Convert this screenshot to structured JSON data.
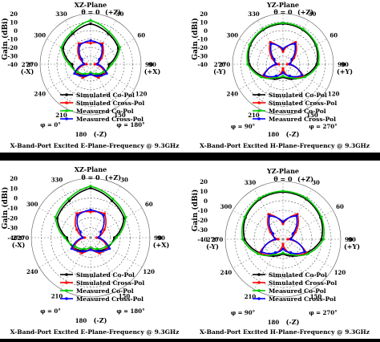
{
  "charts": [
    {
      "plane_title": "XZ-Plane",
      "theta_label": "θ = 0",
      "plus_axis_label": "(+Z)",
      "minus_axis_label": "(-Z)",
      "left_dir_label": "(-X)",
      "right_dir_label": "(+X)",
      "phi_left": "φ = 0°",
      "phi_right": "φ = 180°",
      "caption": "X-Band-Port Excited E-Plane-Frequency @ 9.3GHz",
      "ylabel": "Gain (dBi)"
    },
    {
      "plane_title": "YZ-Plane",
      "theta_label": "θ = 0",
      "plus_axis_label": "(+Z)",
      "minus_axis_label": "(-Z)",
      "left_dir_label": "(-Y)",
      "right_dir_label": "(+Y)",
      "phi_left": "φ = 90°",
      "phi_right": "φ = 270°",
      "caption": "X-Band-Port Excited H-Plane-Frequency @ 9.3GHz",
      "ylabel": "Gain (dBi)"
    },
    {
      "plane_title": "XZ-Plane",
      "theta_label": "θ = 0",
      "plus_axis_label": "(+Z)",
      "minus_axis_label": "(-Z)",
      "left_dir_label": "(-X)",
      "right_dir_label": "(+X)",
      "phi_left": "φ = 0°",
      "phi_right": "φ = 180°",
      "caption": "X-Band-Port Excited E-Plane-Frequency @ 9.3GHz",
      "ylabel": "Gain (dBi)"
    },
    {
      "plane_title": "YZ-Plane",
      "theta_label": "θ = 0",
      "plus_axis_label": "(+Z)",
      "minus_axis_label": "(-Z)",
      "left_dir_label": "(-Y)",
      "right_dir_label": "(+Y)",
      "phi_left": "φ = 90°",
      "phi_right": "φ = 270°",
      "caption": "X-Band-Port Excited H-Plane-Frequency @ 9.3GHz",
      "ylabel": "Gain (dBi)"
    }
  ],
  "chart_data": [
    {
      "type": "polar",
      "r_ticks": [
        20,
        10,
        0,
        -10,
        -20,
        -30,
        -40
      ],
      "rlim": [
        -40,
        20
      ],
      "angle_ticks": [
        0,
        30,
        60,
        90,
        120,
        150,
        180,
        210,
        240,
        270,
        300,
        330
      ],
      "series": [
        {
          "name": "Simulated Co-Pol",
          "color": "#000000",
          "angles": [
            0,
            30,
            60,
            90,
            120,
            150,
            180,
            210,
            240,
            270,
            300,
            330
          ],
          "values": [
            8,
            2,
            -2,
            -18,
            -20,
            -25,
            -28,
            -25,
            -20,
            -18,
            -2,
            2
          ]
        },
        {
          "name": "Simulated Cross-Pol",
          "color": "#ff0000",
          "angles": [
            0,
            30,
            60,
            90,
            120,
            150,
            180,
            210,
            240,
            270,
            300,
            330
          ],
          "values": [
            -15,
            -12,
            -25,
            -35,
            -20,
            -22,
            -30,
            -22,
            -20,
            -35,
            -25,
            -12
          ]
        },
        {
          "name": "Measured Co-Pol",
          "color": "#00cc00",
          "angles": [
            0,
            30,
            60,
            90,
            120,
            150,
            180,
            210,
            240,
            270,
            300,
            330
          ],
          "values": [
            12,
            4,
            0,
            -15,
            -22,
            -27,
            -30,
            -27,
            -22,
            -15,
            0,
            4
          ]
        },
        {
          "name": "Measured Cross-Pol",
          "color": "#0000ff",
          "angles": [
            0,
            30,
            60,
            90,
            120,
            150,
            180,
            210,
            240,
            270,
            300,
            330
          ],
          "values": [
            -12,
            -14,
            -28,
            -32,
            -18,
            -24,
            -28,
            -24,
            -18,
            -32,
            -28,
            -14
          ]
        }
      ]
    },
    {
      "type": "polar",
      "r_ticks": [
        20,
        10,
        0,
        -10,
        -20,
        -30,
        -40
      ],
      "rlim": [
        -40,
        20
      ],
      "angle_ticks": [
        0,
        30,
        60,
        90,
        120,
        150,
        180,
        210,
        240,
        270,
        300,
        330
      ],
      "series": [
        {
          "name": "Simulated Co-Pol",
          "color": "#000000",
          "angles": [
            0,
            30,
            60,
            90,
            120,
            150,
            180,
            210,
            240,
            270,
            300,
            330
          ],
          "values": [
            8,
            7,
            5,
            0,
            -12,
            -20,
            -25,
            -20,
            -12,
            0,
            5,
            7
          ]
        },
        {
          "name": "Simulated Cross-Pol",
          "color": "#ff0000",
          "angles": [
            0,
            30,
            60,
            90,
            120,
            150,
            180,
            210,
            240,
            270,
            300,
            330
          ],
          "values": [
            -25,
            -10,
            -25,
            -35,
            -12,
            -22,
            -35,
            -22,
            -12,
            -35,
            -25,
            -10
          ]
        },
        {
          "name": "Measured Co-Pol",
          "color": "#00cc00",
          "angles": [
            0,
            30,
            60,
            90,
            120,
            150,
            180,
            210,
            240,
            270,
            300,
            330
          ],
          "values": [
            9,
            8,
            6,
            2,
            -10,
            -22,
            -26,
            -22,
            -10,
            2,
            6,
            8
          ]
        },
        {
          "name": "Measured Cross-Pol",
          "color": "#0000ff",
          "angles": [
            0,
            30,
            60,
            90,
            120,
            150,
            180,
            210,
            240,
            270,
            300,
            330
          ],
          "values": [
            -22,
            -12,
            -28,
            -32,
            -14,
            -24,
            -30,
            -24,
            -14,
            -32,
            -28,
            -12
          ]
        }
      ]
    },
    {
      "type": "polar",
      "r_ticks": [
        20,
        10,
        0,
        -10,
        -20,
        -30,
        -40
      ],
      "rlim": [
        -40,
        20
      ],
      "angle_ticks": [
        0,
        30,
        60,
        90,
        120,
        150,
        180,
        210,
        240,
        270,
        300,
        330
      ],
      "series": [
        {
          "name": "Simulated Co-Pol",
          "color": "#000000",
          "angles": [
            0,
            30,
            60,
            90,
            120,
            150,
            180,
            210,
            240,
            270,
            300,
            330
          ],
          "values": [
            10,
            3,
            -1,
            -16,
            -20,
            -25,
            -28,
            -25,
            -20,
            -16,
            -1,
            3
          ]
        },
        {
          "name": "Simulated Cross-Pol",
          "color": "#ff0000",
          "angles": [
            0,
            30,
            60,
            90,
            120,
            150,
            180,
            210,
            240,
            270,
            300,
            330
          ],
          "values": [
            -14,
            -12,
            -24,
            -34,
            -20,
            -22,
            -30,
            -22,
            -20,
            -34,
            -24,
            -12
          ]
        },
        {
          "name": "Measured Co-Pol",
          "color": "#00cc00",
          "angles": [
            0,
            30,
            60,
            90,
            120,
            150,
            180,
            210,
            240,
            270,
            300,
            330
          ],
          "values": [
            12,
            5,
            1,
            -14,
            -22,
            -27,
            -30,
            -27,
            -22,
            -14,
            1,
            5
          ]
        },
        {
          "name": "Measured Cross-Pol",
          "color": "#0000ff",
          "angles": [
            0,
            30,
            60,
            90,
            120,
            150,
            180,
            210,
            240,
            270,
            300,
            330
          ],
          "values": [
            -12,
            -14,
            -28,
            -32,
            -18,
            -24,
            -28,
            -24,
            -18,
            -32,
            -28,
            -14
          ]
        }
      ]
    },
    {
      "type": "polar",
      "r_ticks": [
        20,
        10,
        0,
        -10,
        -20,
        -30,
        -40
      ],
      "rlim": [
        -40,
        20
      ],
      "angle_ticks": [
        0,
        30,
        60,
        90,
        120,
        150,
        180,
        210,
        240,
        270,
        300,
        330
      ],
      "series": [
        {
          "name": "Simulated Co-Pol",
          "color": "#000000",
          "angles": [
            0,
            30,
            60,
            90,
            120,
            150,
            180,
            210,
            240,
            270,
            300,
            330
          ],
          "values": [
            9,
            8,
            5,
            0,
            -12,
            -20,
            -25,
            -20,
            -12,
            0,
            5,
            8
          ]
        },
        {
          "name": "Simulated Cross-Pol",
          "color": "#ff0000",
          "angles": [
            0,
            30,
            60,
            90,
            120,
            150,
            180,
            210,
            240,
            270,
            300,
            330
          ],
          "values": [
            -24,
            -10,
            -25,
            -35,
            -12,
            -22,
            -35,
            -22,
            -12,
            -35,
            -25,
            -10
          ]
        },
        {
          "name": "Measured Co-Pol",
          "color": "#00cc00",
          "angles": [
            0,
            30,
            60,
            90,
            120,
            150,
            180,
            210,
            240,
            270,
            300,
            330
          ],
          "values": [
            10,
            9,
            6,
            2,
            -10,
            -22,
            -26,
            -22,
            -10,
            2,
            6,
            9
          ]
        },
        {
          "name": "Measured Cross-Pol",
          "color": "#0000ff",
          "angles": [
            0,
            30,
            60,
            90,
            120,
            150,
            180,
            210,
            240,
            270,
            300,
            330
          ],
          "values": [
            -22,
            -12,
            -28,
            -32,
            -14,
            -24,
            -30,
            -24,
            -14,
            -32,
            -28,
            -12
          ]
        }
      ]
    }
  ]
}
